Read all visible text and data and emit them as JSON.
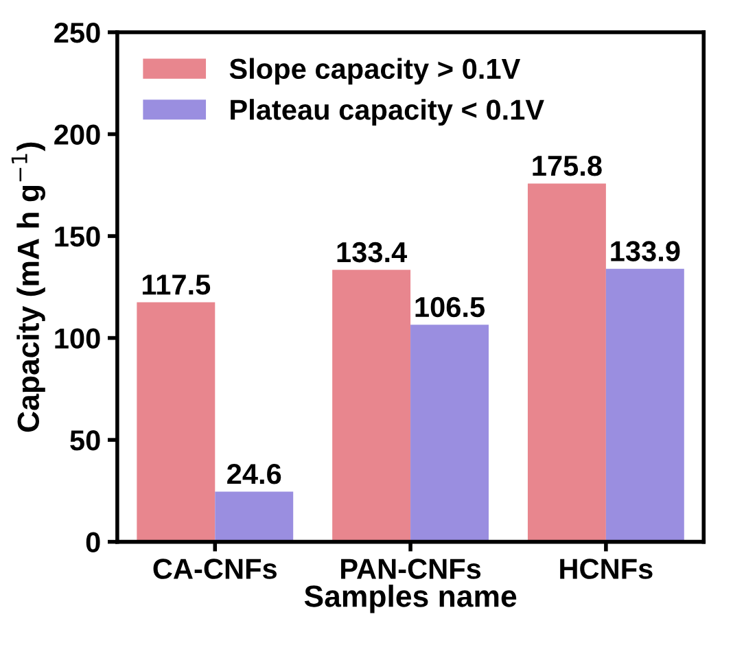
{
  "chart_data": {
    "type": "bar",
    "xlabel": "Samples name",
    "ylabel": "Capacity (mA h g$^{−1}$)",
    "categories": [
      "CA-CNFs",
      "PAN-CNFs",
      "HCNFs"
    ],
    "series": [
      {
        "name": "Slope capacity > 0.1V",
        "color": "#e8868e",
        "values": [
          117.5,
          133.4,
          175.8
        ]
      },
      {
        "name": "Plateau capacity < 0.1V",
        "color": "#9a8ee0",
        "values": [
          24.6,
          106.5,
          133.9
        ]
      }
    ],
    "ylim": [
      0,
      250
    ],
    "yticks": [
      0,
      50,
      100,
      150,
      200,
      250
    ],
    "data_labels": true,
    "legend": "top left",
    "grid": false
  }
}
